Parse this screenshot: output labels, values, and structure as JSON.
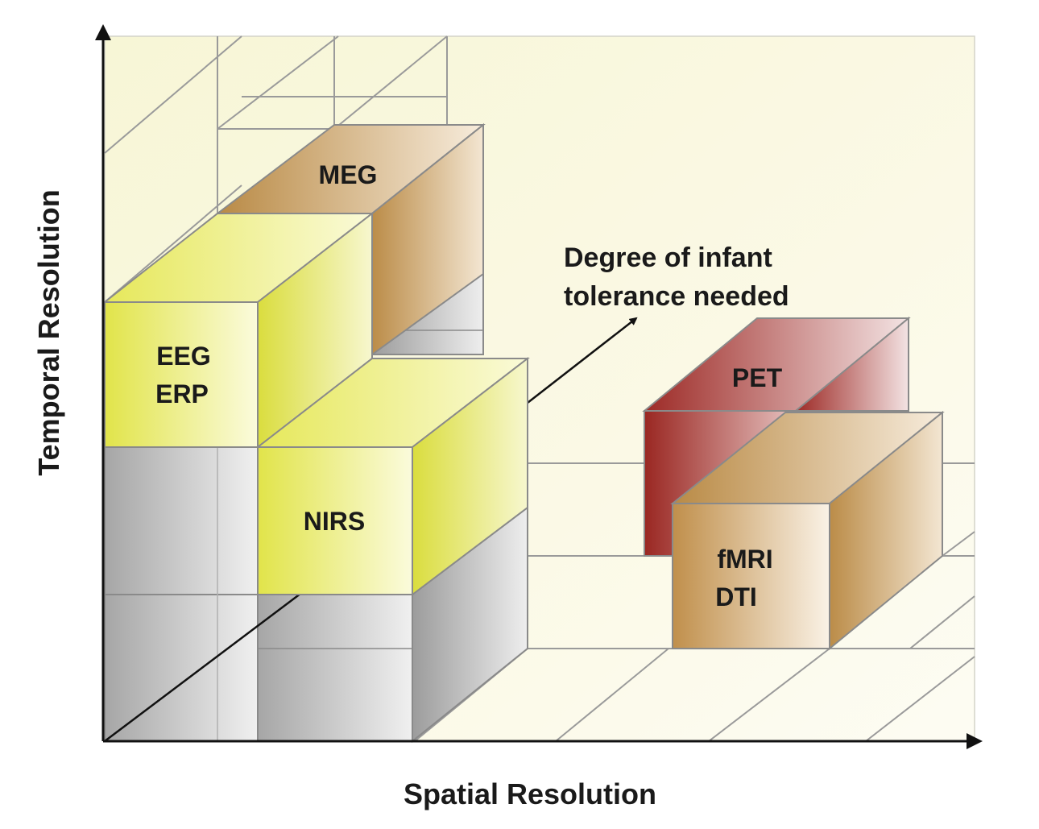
{
  "axes": {
    "x_label": "Spatial Resolution",
    "y_label": "Temporal Resolution",
    "z_label_line1": "Degree of infant",
    "z_label_line2": "tolerance needed"
  },
  "methods": {
    "meg": "MEG",
    "eeg_line1": "EEG",
    "eeg_line2": "ERP",
    "nirs": "NIRS",
    "pet": "PET",
    "fmri_line1": "fMRI",
    "fmri_line2": "DTI"
  },
  "colors": {
    "background": "#fbf9e6",
    "grid": "#8f8f8f",
    "gray_block": "#b7b7b7",
    "yellow_block": "#e4e85e",
    "tan_block": "#c49a5a",
    "red_block": "#a73a35"
  }
}
